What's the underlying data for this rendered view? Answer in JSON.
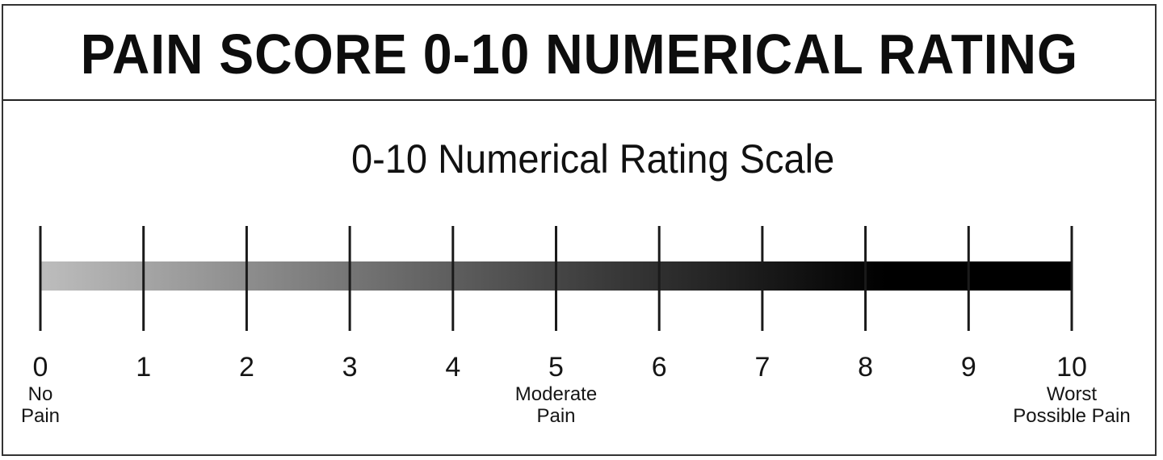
{
  "title": "PAIN SCORE 0-10 NUMERICAL RATING",
  "subtitle": "0-10 Numerical Rating Scale",
  "scale": {
    "min": 0,
    "max": 10,
    "ticks": [
      "0",
      "1",
      "2",
      "3",
      "4",
      "5",
      "6",
      "7",
      "8",
      "9",
      "10"
    ],
    "gradient_start_color": "#bdbdbd",
    "gradient_end_color": "#000000"
  },
  "anchors": [
    {
      "value": 0,
      "lines": [
        "No",
        "Pain"
      ]
    },
    {
      "value": 5,
      "lines": [
        "Moderate",
        "Pain"
      ]
    },
    {
      "value": 10,
      "lines": [
        "Worst",
        "Possible Pain"
      ]
    }
  ]
}
